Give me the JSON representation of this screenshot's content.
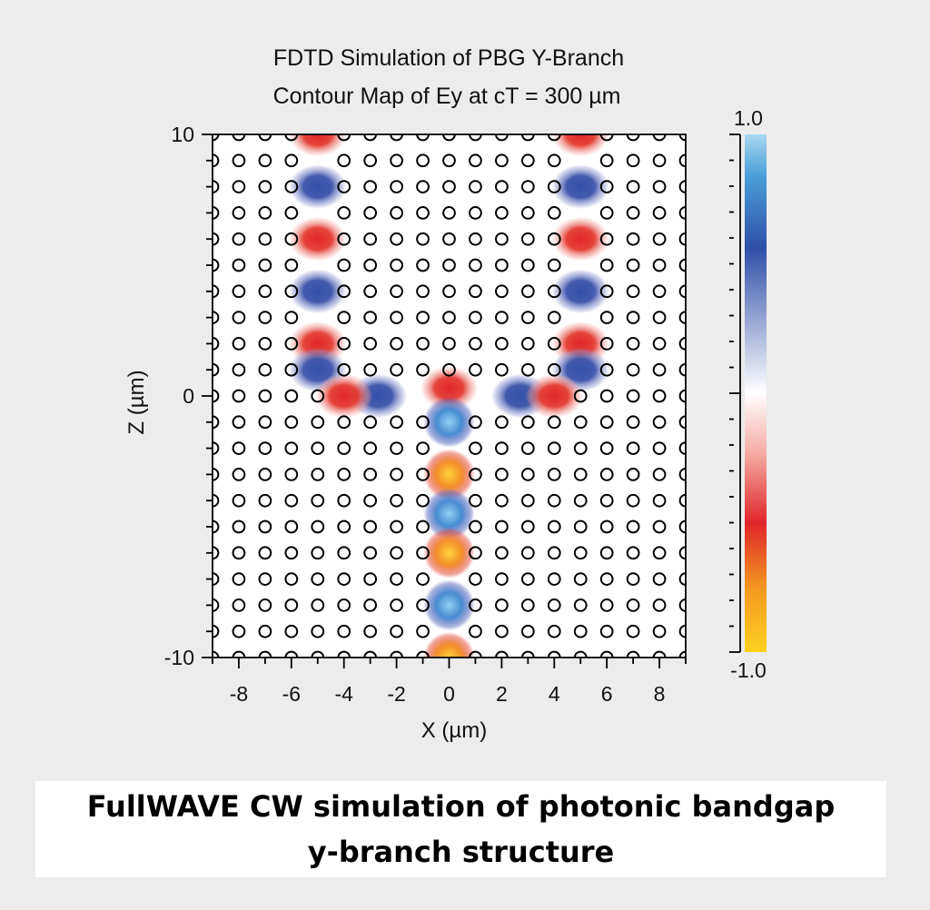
{
  "chart_data": {
    "type": "heatmap",
    "title": "FDTD Simulation of PBG Y-Branch",
    "subtitle": "Contour Map of Ey at cT = 300 µm",
    "xlabel": "X (µm)",
    "ylabel": "Z (µm)",
    "xlim": [
      -9,
      9
    ],
    "ylim": [
      -10,
      10
    ],
    "x_ticks": [
      -8,
      -6,
      -4,
      -2,
      0,
      2,
      4,
      6,
      8
    ],
    "x_tick_labels": [
      "-8",
      "-6",
      "-4",
      "-2",
      "0",
      "2",
      "4",
      "6",
      "8"
    ],
    "y_ticks": [
      10,
      0,
      -10
    ],
    "y_tick_labels": [
      "10",
      "0",
      "-10"
    ],
    "colorbar": {
      "range": [
        -1.0,
        1.0
      ],
      "max_label": "1.0",
      "min_label": "-1.0",
      "colors_high_to_low": [
        "#a8d8f0",
        "#4a9fd8",
        "#2f4fa8",
        "#ffffff",
        "#f4a8a0",
        "#e0262a",
        "#f39a20",
        "#ffd020"
      ]
    },
    "rod_lattice": {
      "pitch_um": 1,
      "x_range": [
        -9,
        9
      ],
      "z_range": [
        -10,
        10
      ],
      "rod_radius_um": 0.22
    },
    "field_lobes": [
      {
        "x": -5,
        "z": 10,
        "ey": -0.75
      },
      {
        "x": -5,
        "z": 8,
        "ey": 0.75
      },
      {
        "x": -5,
        "z": 6,
        "ey": -0.75
      },
      {
        "x": -5,
        "z": 4,
        "ey": 0.75
      },
      {
        "x": -5,
        "z": 2,
        "ey": -0.75
      },
      {
        "x": -5,
        "z": 1,
        "ey": 0.75
      },
      {
        "x": 5,
        "z": 10,
        "ey": -0.75
      },
      {
        "x": 5,
        "z": 8,
        "ey": 0.75
      },
      {
        "x": 5,
        "z": 6,
        "ey": -0.75
      },
      {
        "x": 5,
        "z": 4,
        "ey": 0.75
      },
      {
        "x": 5,
        "z": 2,
        "ey": -0.75
      },
      {
        "x": 5,
        "z": 1,
        "ey": 0.75
      },
      {
        "x": -2.7,
        "z": 0,
        "ey": 0.75
      },
      {
        "x": 2.7,
        "z": 0,
        "ey": 0.75
      },
      {
        "x": -4,
        "z": 0,
        "ey": -0.6
      },
      {
        "x": 4,
        "z": 0,
        "ey": -0.6
      },
      {
        "x": 0,
        "z": 0.3,
        "ey": -0.5
      },
      {
        "x": 0,
        "z": -1,
        "ey": 0.95
      },
      {
        "x": 0,
        "z": -3,
        "ey": -1.0
      },
      {
        "x": 0,
        "z": -4.5,
        "ey": 0.95
      },
      {
        "x": 0,
        "z": -6,
        "ey": -1.0
      },
      {
        "x": 0,
        "z": -8,
        "ey": 0.95
      },
      {
        "x": 0,
        "z": -10,
        "ey": -1.0
      }
    ]
  },
  "caption": "FullWAVE CW simulation of photonic bandgap\ny-branch structure"
}
